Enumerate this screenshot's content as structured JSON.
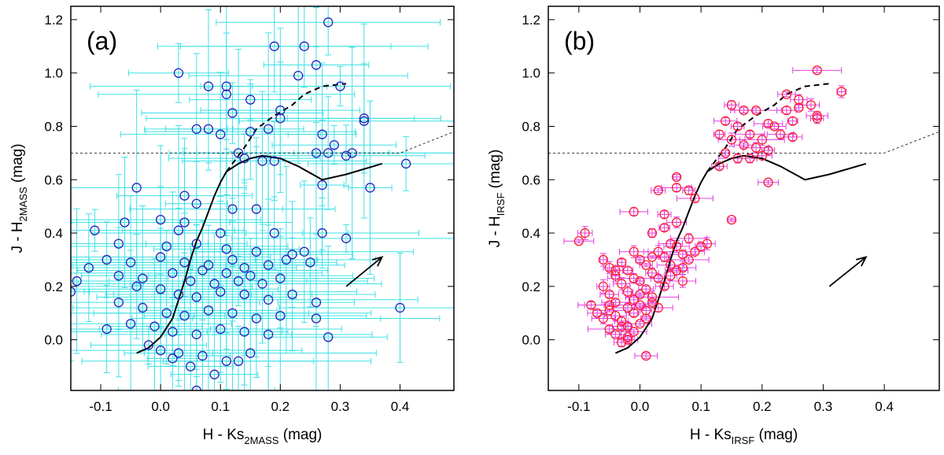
{
  "chart_data": [
    {
      "type": "scatter",
      "panel_label": "(a)",
      "xlabel": "H - Ks",
      "xlabel_sub": "2MASS",
      "xlabel_unit": " (mag)",
      "ylabel": "J - H",
      "ylabel_sub": "2MASS",
      "ylabel_unit": " (mag)",
      "xlim": [
        -0.15,
        0.49
      ],
      "ylim": [
        -0.19,
        1.25
      ],
      "xticks": [
        -0.1,
        0.0,
        0.1,
        0.2,
        0.3,
        0.4
      ],
      "xtick_labels": [
        "-0.1",
        "0.0",
        "0.1",
        "0.2",
        "0.3",
        "0.4"
      ],
      "yticks": [
        0.0,
        0.2,
        0.4,
        0.6,
        0.8,
        1.0,
        1.2
      ],
      "ytick_labels": [
        "0.0",
        "0.2",
        "0.4",
        "0.6",
        "0.8",
        "1.0",
        "1.2"
      ],
      "grid": false,
      "marker_color": "#2222bb",
      "errorbar_color": "#3fe0e6",
      "errorbars": "large",
      "points": [
        [
          0.28,
          1.19
        ],
        [
          0.19,
          1.1
        ],
        [
          0.24,
          1.1
        ],
        [
          0.03,
          1.0
        ],
        [
          0.26,
          1.03
        ],
        [
          0.23,
          0.99
        ],
        [
          0.11,
          0.95
        ],
        [
          0.08,
          0.95
        ],
        [
          0.3,
          0.95
        ],
        [
          0.11,
          0.92
        ],
        [
          0.15,
          0.9
        ],
        [
          0.2,
          0.86
        ],
        [
          0.2,
          0.83
        ],
        [
          0.12,
          0.85
        ],
        [
          0.34,
          0.82
        ],
        [
          0.34,
          0.83
        ],
        [
          0.06,
          0.79
        ],
        [
          0.08,
          0.79
        ],
        [
          0.1,
          0.77
        ],
        [
          0.15,
          0.78
        ],
        [
          0.18,
          0.79
        ],
        [
          0.27,
          0.77
        ],
        [
          0.29,
          0.73
        ],
        [
          0.26,
          0.7
        ],
        [
          0.28,
          0.7
        ],
        [
          0.31,
          0.69
        ],
        [
          0.32,
          0.7
        ],
        [
          0.13,
          0.7
        ],
        [
          0.14,
          0.68
        ],
        [
          0.17,
          0.67
        ],
        [
          0.19,
          0.67
        ],
        [
          0.41,
          0.66
        ],
        [
          0.27,
          0.58
        ],
        [
          0.35,
          0.57
        ],
        [
          -0.04,
          0.57
        ],
        [
          0.04,
          0.54
        ],
        [
          0.06,
          0.51
        ],
        [
          0.12,
          0.49
        ],
        [
          0.16,
          0.49
        ],
        [
          0.04,
          0.44
        ],
        [
          0.03,
          0.41
        ],
        [
          -0.06,
          0.44
        ],
        [
          -0.11,
          0.41
        ],
        [
          0.0,
          0.45
        ],
        [
          0.1,
          0.4
        ],
        [
          0.19,
          0.4
        ],
        [
          0.27,
          0.4
        ],
        [
          0.31,
          0.38
        ],
        [
          -0.07,
          0.36
        ],
        [
          0.01,
          0.35
        ],
        [
          0.06,
          0.36
        ],
        [
          0.11,
          0.34
        ],
        [
          0.16,
          0.33
        ],
        [
          0.22,
          0.32
        ],
        [
          0.24,
          0.33
        ],
        [
          -0.09,
          0.3
        ],
        [
          -0.05,
          0.29
        ],
        [
          0.0,
          0.31
        ],
        [
          0.04,
          0.29
        ],
        [
          0.08,
          0.28
        ],
        [
          0.12,
          0.3
        ],
        [
          0.14,
          0.27
        ],
        [
          0.18,
          0.28
        ],
        [
          0.21,
          0.3
        ],
        [
          0.25,
          0.29
        ],
        [
          -0.12,
          0.27
        ],
        [
          -0.07,
          0.24
        ],
        [
          -0.03,
          0.23
        ],
        [
          0.02,
          0.25
        ],
        [
          0.05,
          0.22
        ],
        [
          0.07,
          0.26
        ],
        [
          0.09,
          0.21
        ],
        [
          0.11,
          0.25
        ],
        [
          0.13,
          0.22
        ],
        [
          0.15,
          0.24
        ],
        [
          0.17,
          0.21
        ],
        [
          0.2,
          0.23
        ],
        [
          -0.14,
          0.22
        ],
        [
          -0.04,
          0.2
        ],
        [
          0.0,
          0.19
        ],
        [
          0.03,
          0.17
        ],
        [
          0.06,
          0.16
        ],
        [
          0.1,
          0.18
        ],
        [
          0.14,
          0.17
        ],
        [
          0.18,
          0.15
        ],
        [
          0.22,
          0.17
        ],
        [
          0.26,
          0.14
        ],
        [
          -0.15,
          0.18
        ],
        [
          -0.07,
          0.14
        ],
        [
          -0.03,
          0.12
        ],
        [
          0.01,
          0.1
        ],
        [
          0.04,
          0.09
        ],
        [
          0.08,
          0.11
        ],
        [
          0.12,
          0.1
        ],
        [
          0.16,
          0.08
        ],
        [
          0.2,
          0.09
        ],
        [
          0.26,
          0.08
        ],
        [
          0.4,
          0.12
        ],
        [
          -0.09,
          0.04
        ],
        [
          -0.05,
          0.06
        ],
        [
          -0.01,
          0.05
        ],
        [
          0.02,
          0.03
        ],
        [
          0.06,
          0.02
        ],
        [
          0.1,
          0.04
        ],
        [
          0.14,
          0.03
        ],
        [
          0.18,
          0.02
        ],
        [
          0.28,
          0.01
        ],
        [
          -0.02,
          -0.02
        ],
        [
          0.0,
          -0.04
        ],
        [
          0.03,
          -0.05
        ],
        [
          0.07,
          -0.06
        ],
        [
          0.11,
          -0.08
        ],
        [
          0.15,
          -0.05
        ],
        [
          0.05,
          -0.1
        ],
        [
          0.09,
          -0.13
        ],
        [
          0.06,
          -0.19
        ],
        [
          0.13,
          -0.08
        ],
        [
          0.02,
          -0.07
        ]
      ],
      "curves": [
        {
          "style": "solid",
          "x": [
            -0.04,
            -0.02,
            0.0,
            0.02,
            0.03,
            0.04,
            0.05,
            0.06,
            0.07,
            0.08,
            0.09,
            0.1,
            0.11,
            0.13,
            0.15,
            0.17,
            0.2,
            0.23,
            0.27,
            0.31,
            0.37
          ],
          "y": [
            -0.05,
            -0.03,
            0.01,
            0.08,
            0.15,
            0.22,
            0.3,
            0.37,
            0.42,
            0.48,
            0.54,
            0.59,
            0.63,
            0.66,
            0.68,
            0.69,
            0.68,
            0.65,
            0.6,
            0.62,
            0.66
          ]
        },
        {
          "style": "dashed",
          "x": [
            0.11,
            0.12,
            0.14,
            0.16,
            0.19,
            0.22,
            0.24,
            0.27,
            0.31
          ],
          "y": [
            0.63,
            0.66,
            0.72,
            0.79,
            0.84,
            0.88,
            0.92,
            0.95,
            0.96
          ]
        },
        {
          "style": "dotted-thin",
          "x": [
            -0.15,
            0.4,
            0.49
          ],
          "y": [
            0.7,
            0.7,
            0.78
          ]
        }
      ],
      "arrow": {
        "from": [
          0.31,
          0.2
        ],
        "to": [
          0.37,
          0.31
        ]
      }
    },
    {
      "type": "scatter",
      "panel_label": "(b)",
      "xlabel": "H - Ks",
      "xlabel_sub": "IRSF",
      "xlabel_unit": " (mag)",
      "ylabel": "J - H",
      "ylabel_sub": "IRSF",
      "ylabel_unit": " (mag)",
      "xlim": [
        -0.15,
        0.49
      ],
      "ylim": [
        -0.19,
        1.25
      ],
      "xticks": [
        -0.1,
        0.0,
        0.1,
        0.2,
        0.3,
        0.4
      ],
      "xtick_labels": [
        "-0.1",
        "0.0",
        "0.1",
        "0.2",
        "0.3",
        "0.4"
      ],
      "yticks": [
        0.0,
        0.2,
        0.4,
        0.6,
        0.8,
        1.0,
        1.2
      ],
      "ytick_labels": [
        "0.0",
        "0.2",
        "0.4",
        "0.6",
        "0.8",
        "1.0",
        "1.2"
      ],
      "grid": false,
      "marker_color": "#ff1a33",
      "errorbar_color": "#e040e0",
      "errorbars": "small",
      "points": [
        [
          0.29,
          1.01
        ],
        [
          0.24,
          0.92
        ],
        [
          0.33,
          0.93
        ],
        [
          0.26,
          0.9
        ],
        [
          0.28,
          0.88
        ],
        [
          0.29,
          0.84
        ],
        [
          0.29,
          0.83
        ],
        [
          0.15,
          0.88
        ],
        [
          0.17,
          0.86
        ],
        [
          0.19,
          0.86
        ],
        [
          0.24,
          0.86
        ],
        [
          0.26,
          0.87
        ],
        [
          0.21,
          0.81
        ],
        [
          0.22,
          0.8
        ],
        [
          0.25,
          0.82
        ],
        [
          0.14,
          0.82
        ],
        [
          0.16,
          0.8
        ],
        [
          0.18,
          0.77
        ],
        [
          0.2,
          0.75
        ],
        [
          0.23,
          0.77
        ],
        [
          0.25,
          0.76
        ],
        [
          0.13,
          0.77
        ],
        [
          0.15,
          0.75
        ],
        [
          0.17,
          0.73
        ],
        [
          0.19,
          0.72
        ],
        [
          0.21,
          0.71
        ],
        [
          0.14,
          0.7
        ],
        [
          0.16,
          0.68
        ],
        [
          0.18,
          0.68
        ],
        [
          0.2,
          0.69
        ],
        [
          0.13,
          0.65
        ],
        [
          0.21,
          0.59
        ],
        [
          0.06,
          0.61
        ],
        [
          0.06,
          0.57
        ],
        [
          0.08,
          0.56
        ],
        [
          0.03,
          0.56
        ],
        [
          0.09,
          0.53
        ],
        [
          0.15,
          0.45
        ],
        [
          -0.01,
          0.48
        ],
        [
          0.04,
          0.47
        ],
        [
          -0.1,
          0.37
        ],
        [
          -0.09,
          0.4
        ],
        [
          0.02,
          0.4
        ],
        [
          0.04,
          0.42
        ],
        [
          0.06,
          0.44
        ],
        [
          0.08,
          0.38
        ],
        [
          0.1,
          0.35
        ],
        [
          0.11,
          0.36
        ],
        [
          0.09,
          0.33
        ],
        [
          -0.06,
          0.3
        ],
        [
          -0.05,
          0.27
        ],
        [
          -0.04,
          0.24
        ],
        [
          -0.03,
          0.29
        ],
        [
          -0.02,
          0.26
        ],
        [
          -0.01,
          0.23
        ],
        [
          0.0,
          0.3
        ],
        [
          0.01,
          0.28
        ],
        [
          0.02,
          0.25
        ],
        [
          0.03,
          0.33
        ],
        [
          0.04,
          0.31
        ],
        [
          0.05,
          0.28
        ],
        [
          0.06,
          0.35
        ],
        [
          0.07,
          0.32
        ],
        [
          0.08,
          0.3
        ],
        [
          -0.06,
          0.2
        ],
        [
          -0.05,
          0.17
        ],
        [
          -0.04,
          0.14
        ],
        [
          -0.03,
          0.21
        ],
        [
          -0.02,
          0.18
        ],
        [
          -0.01,
          0.15
        ],
        [
          0.0,
          0.22
        ],
        [
          0.01,
          0.19
        ],
        [
          0.02,
          0.16
        ],
        [
          0.03,
          0.23
        ],
        [
          0.04,
          0.2
        ],
        [
          0.05,
          0.24
        ],
        [
          0.06,
          0.26
        ],
        [
          0.07,
          0.27
        ],
        [
          -0.08,
          0.13
        ],
        [
          -0.07,
          0.1
        ],
        [
          -0.06,
          0.08
        ],
        [
          -0.05,
          0.11
        ],
        [
          -0.04,
          0.09
        ],
        [
          -0.03,
          0.07
        ],
        [
          -0.02,
          0.12
        ],
        [
          -0.01,
          0.1
        ],
        [
          0.0,
          0.13
        ],
        [
          0.01,
          0.11
        ],
        [
          0.02,
          0.14
        ],
        [
          0.03,
          0.12
        ],
        [
          -0.05,
          0.04
        ],
        [
          -0.04,
          0.02
        ],
        [
          -0.03,
          0.05
        ],
        [
          -0.02,
          0.0
        ],
        [
          -0.01,
          0.03
        ],
        [
          0.0,
          0.06
        ],
        [
          0.01,
          0.08
        ],
        [
          -0.03,
          -0.01
        ],
        [
          -0.02,
          0.01
        ],
        [
          -0.05,
          0.13
        ],
        [
          -0.04,
          0.26
        ],
        [
          -0.01,
          0.33
        ],
        [
          0.02,
          0.31
        ],
        [
          0.05,
          0.36
        ],
        [
          0.07,
          0.22
        ],
        [
          0.0,
          0.17
        ],
        [
          -0.02,
          0.05
        ],
        [
          0.01,
          -0.06
        ]
      ],
      "curves": [
        {
          "style": "solid",
          "x": [
            -0.04,
            -0.02,
            0.0,
            0.02,
            0.03,
            0.04,
            0.05,
            0.06,
            0.07,
            0.08,
            0.09,
            0.1,
            0.11,
            0.13,
            0.15,
            0.17,
            0.2,
            0.23,
            0.27,
            0.31,
            0.37
          ],
          "y": [
            -0.05,
            -0.03,
            0.01,
            0.08,
            0.15,
            0.22,
            0.3,
            0.37,
            0.42,
            0.48,
            0.54,
            0.59,
            0.63,
            0.66,
            0.68,
            0.69,
            0.68,
            0.65,
            0.6,
            0.62,
            0.66
          ]
        },
        {
          "style": "dashed",
          "x": [
            0.11,
            0.12,
            0.14,
            0.16,
            0.19,
            0.22,
            0.24,
            0.27,
            0.31
          ],
          "y": [
            0.63,
            0.66,
            0.72,
            0.79,
            0.84,
            0.88,
            0.92,
            0.95,
            0.96
          ]
        },
        {
          "style": "dotted-thin",
          "x": [
            -0.15,
            0.4,
            0.49
          ],
          "y": [
            0.7,
            0.7,
            0.78
          ]
        }
      ],
      "arrow": {
        "from": [
          0.31,
          0.2
        ],
        "to": [
          0.37,
          0.31
        ]
      }
    }
  ]
}
